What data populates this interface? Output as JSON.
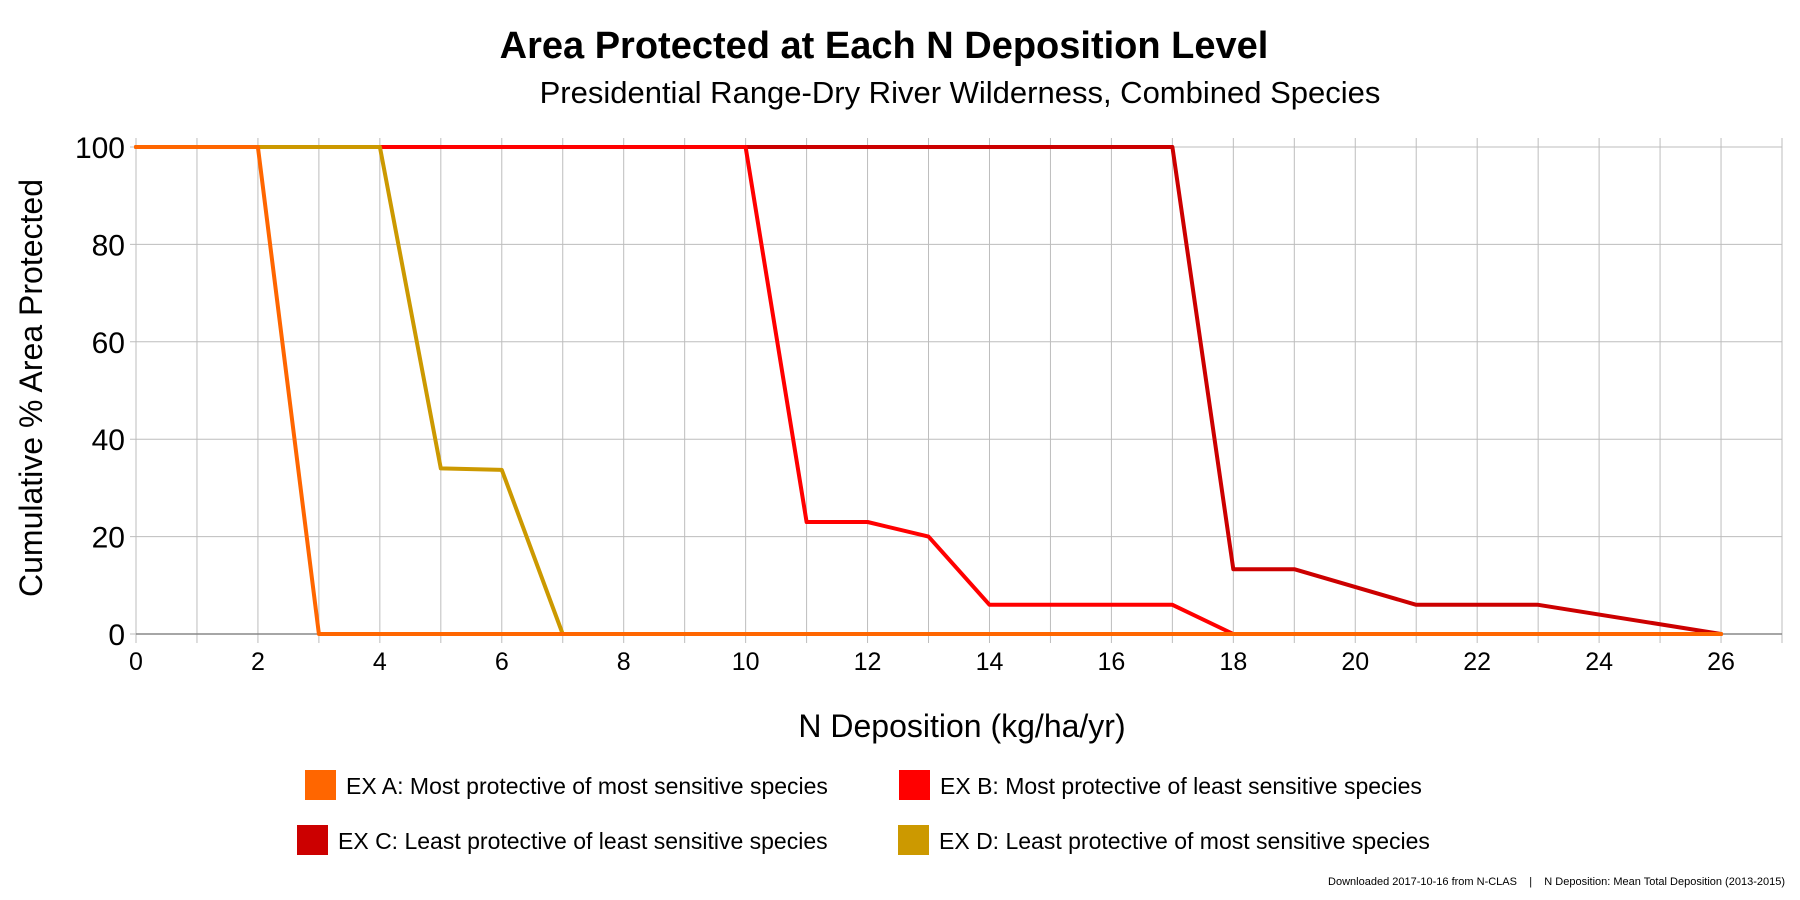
{
  "chart_data": {
    "type": "line",
    "title": "Area Protected at Each N Deposition Level",
    "subtitle": "Presidential Range-Dry River Wilderness, Combined Species",
    "xlabel": "N Deposition (kg/ha/yr)",
    "ylabel": "Cumulative % Area Protected",
    "xlim": [
      0,
      27
    ],
    "ylim": [
      0,
      100
    ],
    "x_ticks": [
      0,
      2,
      4,
      6,
      8,
      10,
      12,
      14,
      16,
      18,
      20,
      22,
      24,
      26
    ],
    "y_ticks": [
      0,
      20,
      40,
      60,
      80,
      100
    ],
    "grid": true,
    "legend_position": "bottom",
    "series": [
      {
        "name": "EX A: Most protective of most sensitive species",
        "color": "#ff6600",
        "points": [
          [
            0,
            100
          ],
          [
            2,
            100
          ],
          [
            3,
            0
          ],
          [
            26,
            0
          ]
        ]
      },
      {
        "name": "EX B: Most protective of least sensitive species",
        "color": "#ff0000",
        "points": [
          [
            0,
            100
          ],
          [
            10,
            100
          ],
          [
            11,
            23
          ],
          [
            12,
            23
          ],
          [
            13,
            20
          ],
          [
            14,
            6
          ],
          [
            17,
            6
          ],
          [
            18,
            0
          ],
          [
            26,
            0
          ]
        ]
      },
      {
        "name": "EX C: Least protective of least sensitive species",
        "color": "#cc0000",
        "points": [
          [
            0,
            100
          ],
          [
            17,
            100
          ],
          [
            18,
            13.3
          ],
          [
            19,
            13.3
          ],
          [
            21,
            6
          ],
          [
            23,
            6
          ],
          [
            26,
            0
          ]
        ]
      },
      {
        "name": "EX D: Least protective of most sensitive species",
        "color": "#cc9900",
        "points": [
          [
            0,
            100
          ],
          [
            4,
            100
          ],
          [
            5,
            34
          ],
          [
            6,
            33.7
          ],
          [
            7,
            0
          ],
          [
            26,
            0
          ]
        ]
      }
    ],
    "draw_order": [
      2,
      1,
      3,
      0
    ],
    "legend_order": [
      0,
      1,
      2,
      3
    ]
  },
  "footer": {
    "text": "Downloaded 2017-10-16 from N-CLAS    |    N Deposition: Mean Total Deposition (2013-2015)"
  }
}
